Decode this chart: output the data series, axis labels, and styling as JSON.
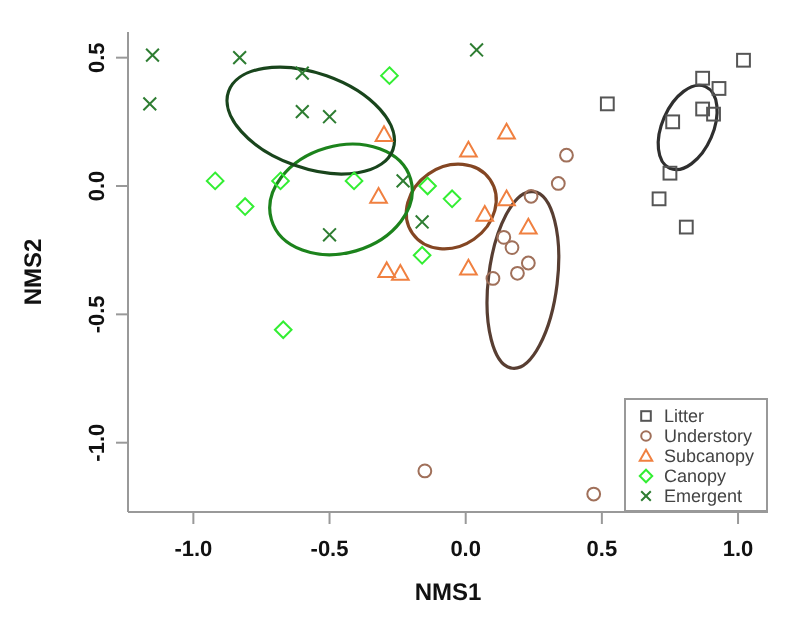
{
  "chart_data": {
    "type": "scatter",
    "xlabel": "NMS1",
    "ylabel": "NMS2",
    "xlim": [
      -1.24,
      1.11
    ],
    "ylim": [
      -1.27,
      0.6
    ],
    "xticks": [
      {
        "value": -1,
        "label": "-1.0"
      },
      {
        "value": -0.5,
        "label": "-0.5"
      },
      {
        "value": 0,
        "label": "0.0"
      },
      {
        "value": 0.5,
        "label": "0.5"
      },
      {
        "value": 1,
        "label": "1.0"
      }
    ],
    "yticks": [
      {
        "value": -1,
        "label": "-1.0"
      },
      {
        "value": -0.5,
        "label": "-0.5"
      },
      {
        "value": 0,
        "label": "0.0"
      },
      {
        "value": 0.5,
        "label": "0.5"
      }
    ],
    "grid": false,
    "legend": "bottom right",
    "series": [
      {
        "name": "Litter",
        "color": "#555555",
        "marker": "square",
        "x": [
          1.02,
          0.87,
          0.93,
          0.52,
          0.87,
          0.91,
          0.76,
          0.75,
          0.71,
          0.81
        ],
        "values": [
          0.49,
          0.42,
          0.38,
          0.32,
          0.3,
          0.28,
          0.25,
          0.05,
          -0.05,
          -0.16
        ]
      },
      {
        "name": "Understory",
        "color": "#a0705a",
        "marker": "circle",
        "x": [
          0.37,
          0.34,
          0.24,
          0.14,
          0.17,
          0.23,
          0.19,
          0.1,
          -0.15,
          0.47
        ],
        "values": [
          0.12,
          0.01,
          -0.04,
          -0.2,
          -0.24,
          -0.3,
          -0.34,
          -0.36,
          -1.11,
          -1.2
        ]
      },
      {
        "name": "Subcanopy",
        "color": "#f08040",
        "marker": "triangle",
        "x": [
          -0.3,
          -0.32,
          -0.29,
          -0.24,
          0.01,
          0.07,
          0.01,
          0.15,
          0.23,
          0.15
        ],
        "values": [
          0.2,
          -0.04,
          -0.33,
          -0.34,
          0.14,
          -0.11,
          -0.32,
          0.21,
          -0.16,
          -0.05
        ]
      },
      {
        "name": "Canopy",
        "color": "#33ee33",
        "marker": "diamond",
        "x": [
          -0.28,
          -0.92,
          -0.68,
          -0.41,
          -0.81,
          -0.14,
          -0.05,
          -0.16,
          -0.67
        ],
        "values": [
          0.43,
          0.02,
          0.02,
          0.02,
          -0.08,
          0,
          -0.05,
          -0.27,
          -0.56
        ]
      },
      {
        "name": "Emergent",
        "color": "#2e7d32",
        "marker": "cross",
        "x": [
          -1.15,
          -0.83,
          -0.6,
          -1.16,
          -0.6,
          -0.5,
          -0.23,
          -0.16,
          -0.5,
          0.04
        ],
        "values": [
          0.51,
          0.5,
          0.44,
          0.32,
          0.29,
          0.27,
          0.02,
          -0.14,
          -0.19,
          0.53
        ]
      }
    ]
  }
}
